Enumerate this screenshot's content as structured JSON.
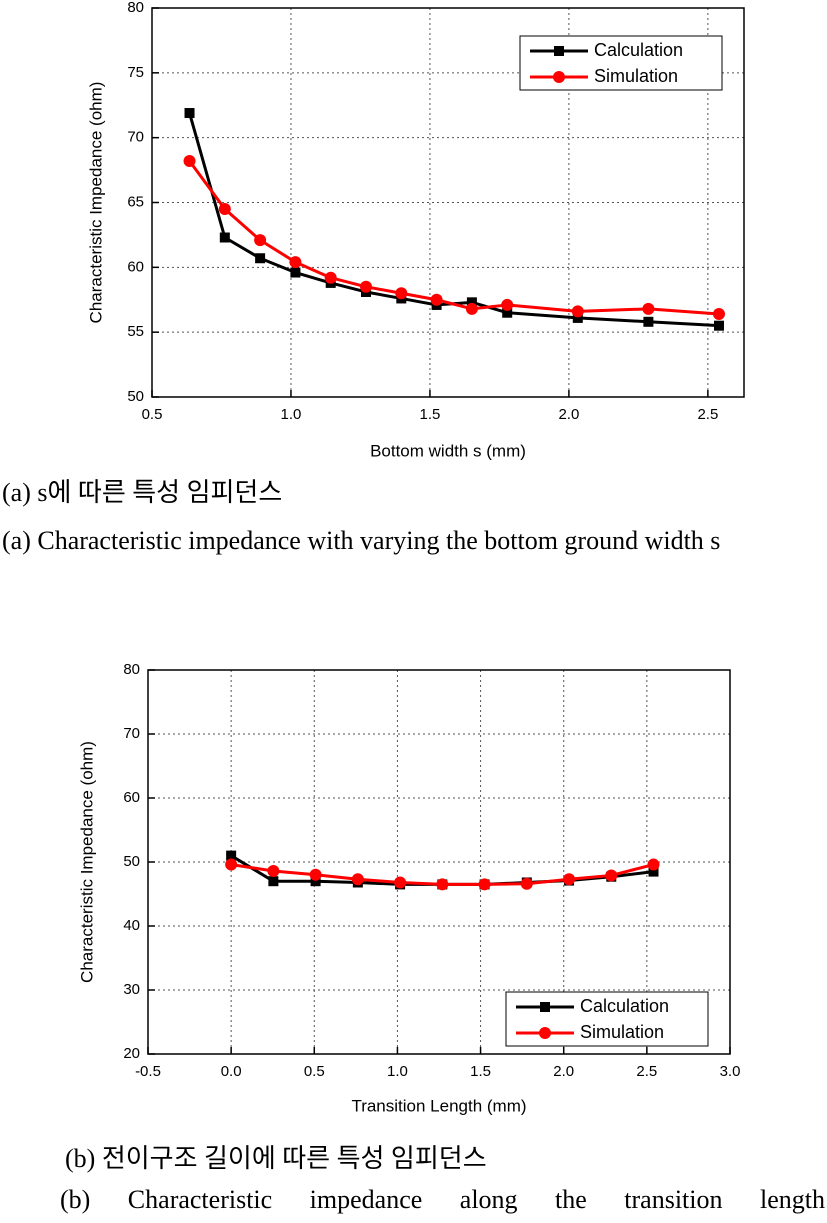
{
  "chart_data": [
    {
      "type": "line",
      "x_label": "Bottom width s (mm)",
      "y_label": "Characteristic Impedance (ohm)",
      "x": [
        0.635,
        0.762,
        0.889,
        1.016,
        1.143,
        1.27,
        1.397,
        1.524,
        1.651,
        1.778,
        2.032,
        2.286,
        2.54
      ],
      "series": [
        {
          "name": "Calculation",
          "color": "#000000",
          "marker": "square",
          "values": [
            71.9,
            62.3,
            60.7,
            59.6,
            58.8,
            58.1,
            57.6,
            57.1,
            57.3,
            56.5,
            56.1,
            55.8,
            55.5
          ]
        },
        {
          "name": "Simulation",
          "color": "#ff0000",
          "marker": "circle",
          "values": [
            68.2,
            64.5,
            62.1,
            60.4,
            59.2,
            58.5,
            58.0,
            57.5,
            56.8,
            57.1,
            56.6,
            56.8,
            56.4
          ]
        }
      ],
      "xlim": [
        0.5,
        2.63
      ],
      "xticks": [
        0.5,
        {
          "value": 1,
          "label": "1.0"
        },
        1.5,
        {
          "value": 2,
          "label": "2.0"
        },
        2.5
      ],
      "ylim": [
        50,
        80
      ],
      "yticks": [
        50,
        55,
        60,
        65,
        70,
        75,
        80
      ],
      "grid": true,
      "legend": "upper-right",
      "captions": [
        "(a) s에 따른 특성 임피던스",
        "(a) Characteristic impedance with varying the bottom ground width s"
      ]
    },
    {
      "type": "line",
      "x_label": "Transition Length (mm)",
      "y_label": "Characteristic Impedance (ohm)",
      "x": [
        0,
        0.254,
        0.508,
        0.762,
        1.016,
        1.27,
        1.524,
        1.778,
        2.032,
        2.286,
        2.54
      ],
      "series": [
        {
          "name": "Calculation",
          "color": "#000000",
          "marker": "square",
          "values": [
            51.0,
            47.0,
            47.0,
            46.8,
            46.5,
            46.5,
            46.5,
            46.8,
            47.1,
            47.7,
            48.5
          ]
        },
        {
          "name": "Simulation",
          "color": "#ff0000",
          "marker": "circle",
          "values": [
            49.6,
            48.6,
            48.0,
            47.3,
            46.8,
            46.5,
            46.5,
            46.6,
            47.3,
            47.9,
            49.6
          ]
        }
      ],
      "xlim": [
        -0.5,
        3
      ],
      "xticks": [
        -0.5,
        {
          "value": 0,
          "label": "0.0"
        },
        0.5,
        {
          "value": 1,
          "label": "1.0"
        },
        1.5,
        {
          "value": 2,
          "label": "2.0"
        },
        2.5,
        {
          "value": 3,
          "label": "3.0"
        }
      ],
      "ylim": [
        20,
        80
      ],
      "yticks": [
        20,
        30,
        40,
        50,
        60,
        70,
        80
      ],
      "grid": true,
      "legend": "lower-right",
      "captions": [
        "(b) 전이구조 길이에 따른 특성 임피던스",
        "(b) Characteristic impedance along the transition length"
      ]
    }
  ]
}
